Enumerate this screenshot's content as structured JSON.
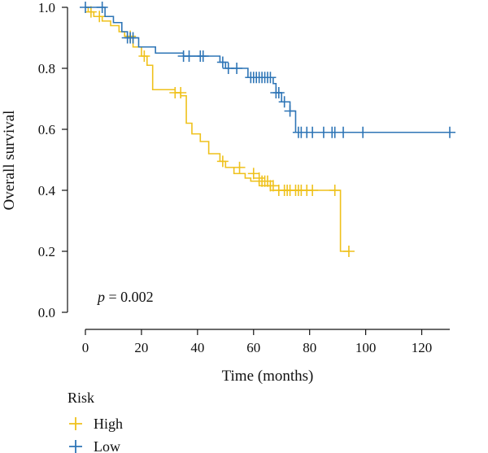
{
  "chart_data": {
    "type": "line",
    "subtype": "kaplan-meier",
    "xlabel": "Time (months)",
    "ylabel": "Overall survival",
    "xlim": [
      0,
      130
    ],
    "ylim": [
      0,
      1.0
    ],
    "xticks": [
      0,
      20,
      40,
      60,
      80,
      100,
      120
    ],
    "yticks": [
      "0.0",
      "0.2",
      "0.4",
      "0.6",
      "0.8",
      "1.0"
    ],
    "grid": false,
    "legend_placement": "bottom-left",
    "legend_title": "Risk",
    "annotation": {
      "p_label": "p",
      "p_text": " = 0.002"
    },
    "series": [
      {
        "name": "High",
        "color": "#EFC11B",
        "step_x": [
          0,
          1,
          3,
          6,
          9,
          12,
          14,
          17,
          20,
          22,
          24,
          32,
          34,
          36,
          38,
          41,
          44,
          48,
          50,
          53,
          57,
          59,
          62,
          66,
          91,
          91,
          94
        ],
        "step_y": [
          1.0,
          0.985,
          0.97,
          0.955,
          0.94,
          0.92,
          0.905,
          0.87,
          0.84,
          0.81,
          0.73,
          0.72,
          0.71,
          0.62,
          0.585,
          0.56,
          0.52,
          0.495,
          0.475,
          0.455,
          0.44,
          0.43,
          0.415,
          0.4,
          0.4,
          0.2,
          0.2
        ],
        "censor_x": [
          2,
          5,
          16,
          21,
          32,
          34,
          49,
          55,
          60,
          62,
          63,
          64,
          65,
          66,
          67,
          69,
          71,
          72,
          73,
          75,
          76,
          77,
          79,
          81,
          89,
          94
        ],
        "censor_y": [
          0.985,
          0.97,
          0.905,
          0.84,
          0.72,
          0.72,
          0.495,
          0.475,
          0.455,
          0.44,
          0.43,
          0.43,
          0.43,
          0.415,
          0.415,
          0.4,
          0.4,
          0.4,
          0.4,
          0.4,
          0.4,
          0.4,
          0.4,
          0.4,
          0.4,
          0.2
        ]
      },
      {
        "name": "Low",
        "color": "#2E75B6",
        "step_x": [
          0,
          7,
          10,
          13,
          15,
          19,
          25,
          35,
          48,
          50,
          58,
          67,
          68,
          70,
          73,
          75,
          130
        ],
        "step_y": [
          1.0,
          0.97,
          0.95,
          0.92,
          0.9,
          0.87,
          0.85,
          0.84,
          0.82,
          0.8,
          0.77,
          0.75,
          0.72,
          0.69,
          0.66,
          0.59,
          0.59
        ],
        "censor_x": [
          0,
          6,
          15,
          16,
          17,
          35,
          37,
          41,
          42,
          49,
          51,
          54,
          59,
          60,
          61,
          62,
          63,
          64,
          65,
          66,
          68,
          69,
          71,
          73,
          76,
          77,
          79,
          81,
          85,
          88,
          89,
          92,
          99,
          130
        ],
        "censor_y": [
          1.0,
          1.0,
          0.9,
          0.9,
          0.9,
          0.84,
          0.84,
          0.84,
          0.84,
          0.82,
          0.8,
          0.8,
          0.77,
          0.77,
          0.77,
          0.77,
          0.77,
          0.77,
          0.77,
          0.77,
          0.72,
          0.72,
          0.69,
          0.66,
          0.59,
          0.59,
          0.59,
          0.59,
          0.59,
          0.59,
          0.59,
          0.59,
          0.59,
          0.59
        ]
      }
    ]
  }
}
